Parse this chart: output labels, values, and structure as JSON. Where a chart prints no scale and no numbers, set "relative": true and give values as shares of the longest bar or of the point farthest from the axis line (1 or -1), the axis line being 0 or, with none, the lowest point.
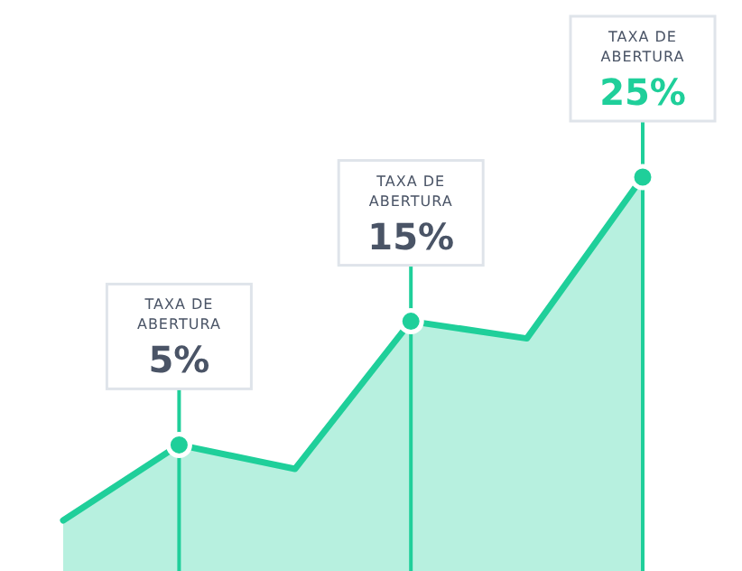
{
  "chart_data": {
    "type": "area",
    "relative": true,
    "categories": [
      null,
      null,
      null,
      null,
      null,
      null
    ],
    "series": [
      {
        "color": "#1fcf9a",
        "values": [
          0,
          0.22,
          0.15,
          0.58,
          0.53,
          1
        ]
      }
    ],
    "annotations": [
      {
        "text": "TAXA DE\nABERTURA\n5%",
        "y": 0.22
      },
      {
        "text": "TAXA DE\nABERTURA\n15%",
        "y": 0.58
      },
      {
        "text": "TAXA DE\nABERTURA\n25%",
        "y": 1
      }
    ]
  }
}
